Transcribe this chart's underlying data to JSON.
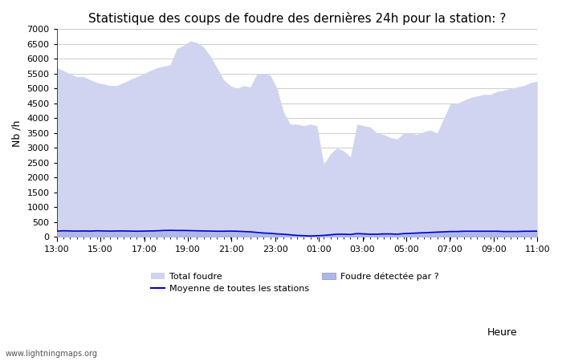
{
  "title": "Statistique des coups de foudre des dernières 24h pour la station: ?",
  "xlabel": "Heure",
  "ylabel": "Nb /h",
  "ylim": [
    0,
    7000
  ],
  "yticks": [
    0,
    500,
    1000,
    1500,
    2000,
    2500,
    3000,
    3500,
    4000,
    4500,
    5000,
    5500,
    6000,
    6500,
    7000
  ],
  "xtick_labels": [
    "13:00",
    "15:00",
    "17:00",
    "19:00",
    "21:00",
    "23:00",
    "01:00",
    "03:00",
    "05:00",
    "07:00",
    "09:00",
    "11:00"
  ],
  "watermark": "www.lightningmaps.org",
  "bg_color": "#ffffff",
  "plot_bg_color": "#ffffff",
  "grid_color": "#cccccc",
  "fill_total_color": "#d0d4f0",
  "fill_local_color": "#b0b8e8",
  "line_color": "#0000cc",
  "total_foudre": [
    5700,
    5600,
    5500,
    5400,
    5400,
    5300,
    5200,
    5150,
    5100,
    5100,
    5200,
    5300,
    5400,
    5500,
    5600,
    5700,
    5750,
    5800,
    6350,
    6450,
    6600,
    6550,
    6400,
    6100,
    5700,
    5300,
    5100,
    5000,
    5100,
    5050,
    5500,
    5500,
    5450,
    5000,
    4200,
    3800,
    3800,
    3750,
    3800,
    3750,
    2450,
    2800,
    3000,
    2900,
    2700,
    3800,
    3750,
    3700,
    3500,
    3450,
    3350,
    3300,
    3500,
    3500,
    3450,
    3550,
    3600,
    3500,
    4000,
    4500,
    4500,
    4600,
    4700,
    4750,
    4800,
    4800,
    4900,
    4950,
    5000,
    5050,
    5100,
    5200,
    5250
  ],
  "local_foudre": [
    220,
    230,
    220,
    210,
    220,
    220,
    230,
    220,
    210,
    220,
    220,
    210,
    200,
    210,
    220,
    230,
    240,
    250,
    250,
    250,
    230,
    230,
    220,
    210,
    200,
    200,
    210,
    200,
    190,
    180,
    160,
    140,
    130,
    110,
    100,
    80,
    60,
    50,
    40,
    50,
    60,
    80,
    100,
    100,
    90,
    120,
    110,
    100,
    100,
    110,
    110,
    100,
    120,
    130,
    140,
    150,
    160,
    170,
    180,
    190,
    190,
    200,
    200,
    200,
    200,
    200,
    200,
    190,
    190,
    190,
    200,
    200,
    210
  ],
  "mean_line": [
    200,
    210,
    205,
    200,
    205,
    200,
    210,
    205,
    200,
    205,
    205,
    200,
    195,
    200,
    205,
    210,
    220,
    225,
    220,
    220,
    215,
    210,
    205,
    200,
    195,
    195,
    200,
    195,
    185,
    175,
    155,
    135,
    125,
    105,
    95,
    75,
    55,
    45,
    35,
    45,
    55,
    75,
    95,
    95,
    85,
    115,
    105,
    95,
    95,
    105,
    105,
    95,
    115,
    125,
    135,
    145,
    155,
    165,
    175,
    185,
    185,
    195,
    195,
    195,
    195,
    195,
    195,
    185,
    185,
    185,
    195,
    195,
    200
  ],
  "legend_total": "Total foudre",
  "legend_local": "Foudre détectée par ?",
  "legend_mean": "Moyenne de toutes les stations",
  "title_fontsize": 11,
  "axis_fontsize": 9,
  "tick_fontsize": 8,
  "legend_fontsize": 8,
  "watermark_fontsize": 7
}
